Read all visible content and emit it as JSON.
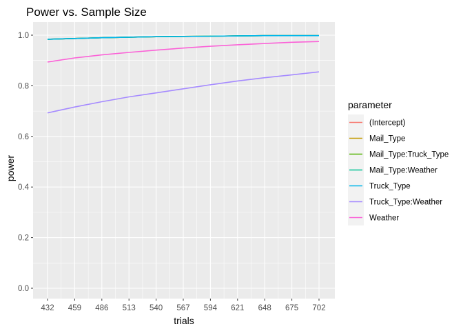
{
  "chart_data": {
    "type": "line",
    "title": "Power vs. Sample Size",
    "xlabel": "trials",
    "ylabel": "power",
    "x": [
      432,
      459,
      486,
      513,
      540,
      567,
      594,
      621,
      648,
      675,
      702
    ],
    "xlim": [
      432,
      702
    ],
    "ylim": [
      0.0,
      1.0
    ],
    "yticks": [
      0.0,
      0.2,
      0.4,
      0.6,
      0.8,
      1.0
    ],
    "ytick_labels": [
      "0.0",
      "0.2",
      "0.4",
      "0.6",
      "0.8",
      "1.0"
    ],
    "grid": true,
    "legend": {
      "title": "parameter",
      "position": "right"
    },
    "series": [
      {
        "name": "(Intercept)",
        "color": "#F8766D",
        "values": [
          0.984,
          0.987,
          0.99,
          0.992,
          0.994,
          0.995,
          0.996,
          0.997,
          0.998,
          0.998,
          0.998
        ]
      },
      {
        "name": "Mail_Type",
        "color": "#C49A00",
        "values": [
          0.984,
          0.987,
          0.99,
          0.992,
          0.994,
          0.995,
          0.996,
          0.997,
          0.998,
          0.998,
          0.998
        ]
      },
      {
        "name": "Mail_Type:Truck_Type",
        "color": "#53B400",
        "values": [
          0.984,
          0.987,
          0.99,
          0.992,
          0.994,
          0.995,
          0.996,
          0.997,
          0.998,
          0.998,
          0.998
        ]
      },
      {
        "name": "Mail_Type:Weather",
        "color": "#00C094",
        "values": [
          0.984,
          0.987,
          0.99,
          0.992,
          0.994,
          0.995,
          0.996,
          0.997,
          0.998,
          0.998,
          0.998
        ]
      },
      {
        "name": "Truck_Type",
        "color": "#00B6EB",
        "values": [
          0.984,
          0.987,
          0.99,
          0.992,
          0.994,
          0.995,
          0.996,
          0.997,
          0.998,
          0.998,
          0.998
        ]
      },
      {
        "name": "Truck_Type:Weather",
        "color": "#A58AFF",
        "values": [
          0.693,
          0.716,
          0.737,
          0.756,
          0.772,
          0.788,
          0.804,
          0.819,
          0.832,
          0.843,
          0.855
        ]
      },
      {
        "name": "Weather",
        "color": "#FB61D7",
        "values": [
          0.894,
          0.91,
          0.922,
          0.932,
          0.941,
          0.949,
          0.956,
          0.962,
          0.967,
          0.972,
          0.975
        ]
      }
    ]
  }
}
